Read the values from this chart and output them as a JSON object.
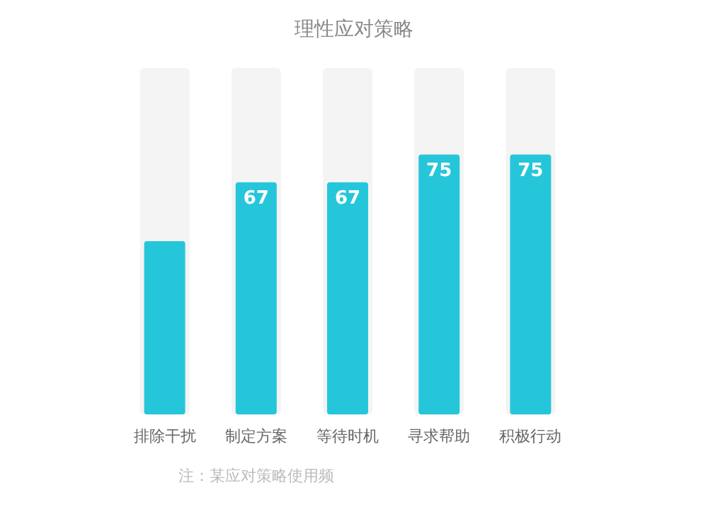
{
  "chart_data": {
    "type": "bar",
    "title": "理性应对策略",
    "categories": [
      "排除干扰",
      "制定方案",
      "等待时机",
      "寻求帮助",
      "积极行动"
    ],
    "values": [
      50,
      67,
      67,
      75,
      75
    ],
    "value_labels": [
      null,
      "67",
      "67",
      "75",
      "75"
    ],
    "color": "#26c6da",
    "ylim": [
      0,
      100
    ],
    "annotations": [
      "注：某应对策略使用频"
    ]
  }
}
